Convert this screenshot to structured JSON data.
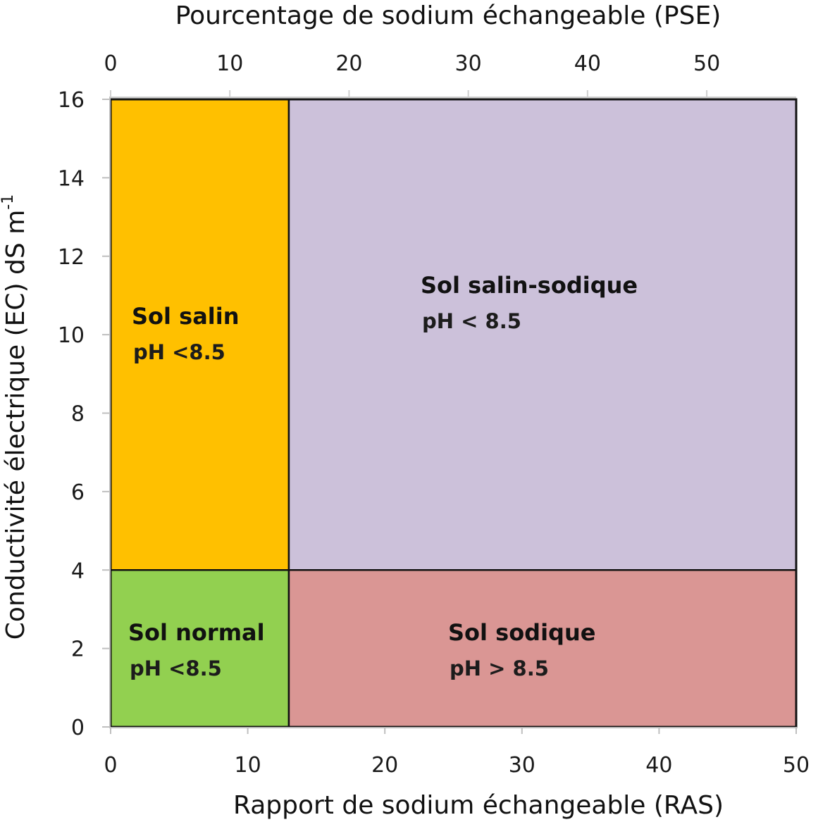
{
  "chart_data": {
    "type": "heatmap",
    "top_axis": {
      "label": "Pourcentage de sodium échangeable (PSE)",
      "range": [
        0,
        57.5
      ],
      "ticks": [
        0,
        10,
        20,
        30,
        40,
        50
      ]
    },
    "x_axis": {
      "label": "Rapport de sodium échangeable (RAS)",
      "range": [
        0,
        50
      ],
      "ticks": [
        0,
        10,
        20,
        30,
        40,
        50
      ]
    },
    "y_axis": {
      "label": "Conductivité électrique (EC) dS m",
      "label_superscript": "-1",
      "range": [
        0,
        16
      ],
      "ticks": [
        0,
        2,
        4,
        6,
        8,
        10,
        12,
        14,
        16
      ]
    },
    "regions": [
      {
        "name": "Sol salin",
        "ph": "pH <8.5",
        "ras": [
          0,
          13
        ],
        "ec": [
          4,
          16
        ],
        "color": "#ffc000"
      },
      {
        "name": "Sol salin-sodique",
        "ph": "pH < 8.5",
        "ras": [
          13,
          50
        ],
        "ec": [
          4,
          16
        ],
        "color": "#ccc1da"
      },
      {
        "name": "Sol normal",
        "ph": "pH <8.5",
        "ras": [
          0,
          13
        ],
        "ec": [
          0,
          4
        ],
        "color": "#92d050"
      },
      {
        "name": "Sol sodique",
        "ph": "pH > 8.5",
        "ras": [
          13,
          50
        ],
        "ec": [
          0,
          4
        ],
        "color": "#da9694"
      }
    ],
    "boundaries": {
      "ras": 13,
      "ec": 4
    },
    "grid": false
  }
}
